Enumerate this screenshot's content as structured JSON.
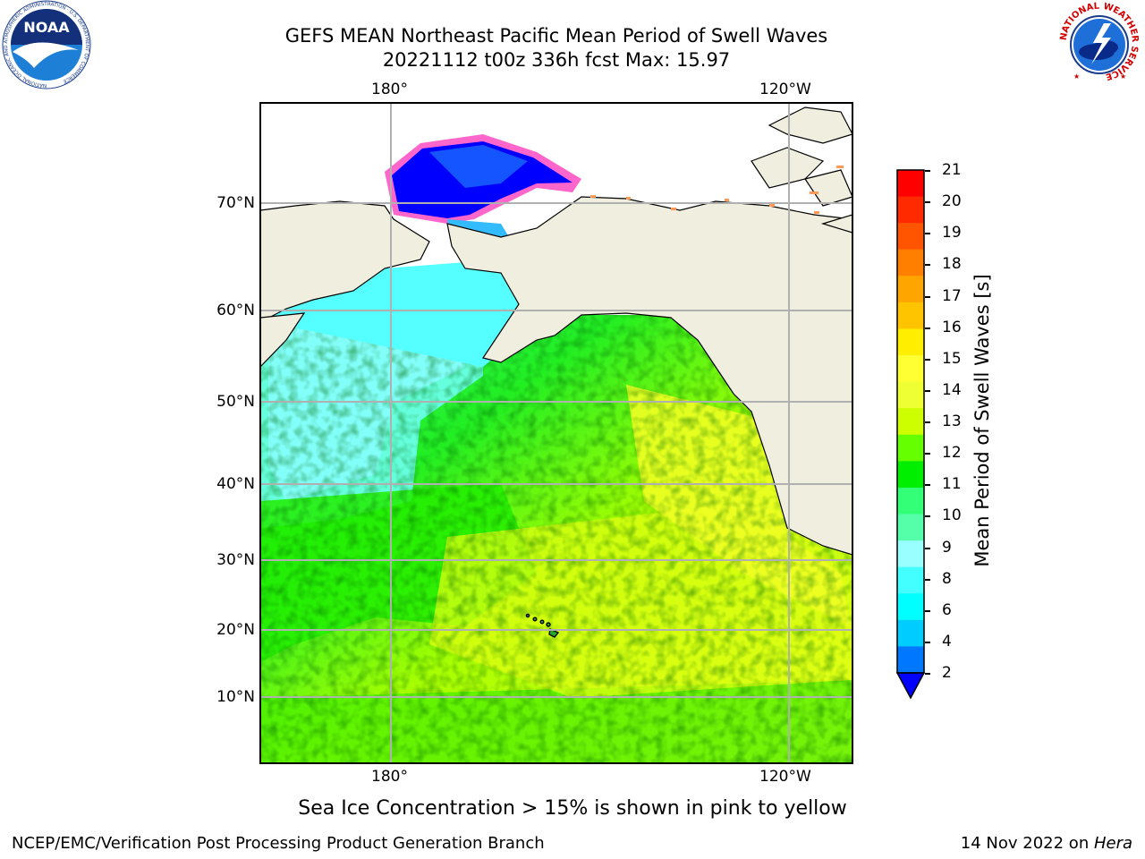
{
  "title": {
    "line1": "GEFS MEAN Northeast Pacific Mean Period of Swell Waves",
    "line2": "20221112 t00z 336h fcst   Max: 15.97"
  },
  "map": {
    "lon_labels": [
      "180°",
      "120°W"
    ],
    "lat_labels": [
      "70°N",
      "60°N",
      "50°N",
      "40°N",
      "30°N",
      "20°N",
      "10°N"
    ],
    "land_color": "#efeedf",
    "grid_color": "#b0b0b0"
  },
  "colorbar": {
    "title": "Mean Period of Swell Waves [s]",
    "tick_labels": [
      "21",
      "20",
      "19",
      "18",
      "17",
      "16",
      "15",
      "14",
      "13",
      "12",
      "11",
      "10",
      "9",
      "8",
      "6",
      "4",
      "2"
    ],
    "colors_top_to_bottom": [
      "#ff0000",
      "#ff2a00",
      "#ff5500",
      "#ff7f00",
      "#ffa500",
      "#ffc400",
      "#ffee00",
      "#ffff33",
      "#eeff33",
      "#cdff00",
      "#66ff00",
      "#00ee00",
      "#33ff77",
      "#55ffaa",
      "#99ffff",
      "#44ffff",
      "#00ffff",
      "#00ccff",
      "#0077ff"
    ],
    "extend_color": "#0000ff"
  },
  "logos": {
    "noaa": {
      "text": "NOAA",
      "ring_text": "NATIONAL OCEANIC AND ATMOSPHERIC ADMINISTRATION · U.S. DEPARTMENT OF COMMERCE"
    },
    "nws": {
      "ring_text": "NATIONAL WEATHER SERVICE"
    }
  },
  "caption": "Sea Ice Concentration > 15% is shown in pink to yellow",
  "footer": {
    "left": "NCEP/EMC/Verification Post Processing Product Generation Branch",
    "right_date": "14 Nov 2022 on ",
    "right_host": "Hera"
  }
}
